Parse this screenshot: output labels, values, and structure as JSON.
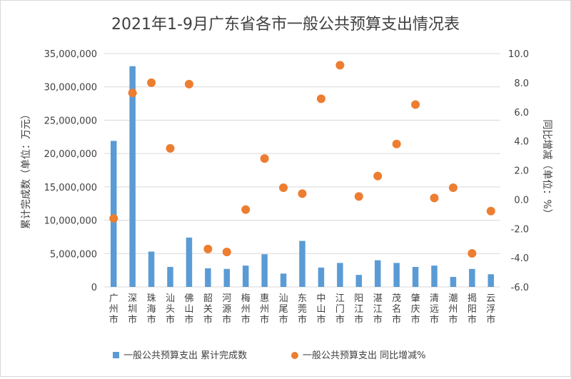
{
  "chart_data": {
    "type": "bar+scatter",
    "title": "2021年1-9月广东省各市一般公共预算支出情况表",
    "ylabel_left": "累计完成数（单位：万元）",
    "ylabel_right": "同比增减（单位：%）",
    "ylim_left": [
      0,
      35000000
    ],
    "ylim_right": [
      -6.0,
      10.0
    ],
    "yticks_left": [
      "0",
      "5,000,000",
      "10,000,000",
      "15,000,000",
      "20,000,000",
      "25,000,000",
      "30,000,000",
      "35,000,000"
    ],
    "yticks_right": [
      "-6.0",
      "-4.0",
      "-2.0",
      "0.0",
      "2.0",
      "4.0",
      "6.0",
      "8.0",
      "10.0"
    ],
    "categories": [
      "广州市",
      "深圳市",
      "珠海市",
      "汕头市",
      "佛山市",
      "韶关市",
      "河源市",
      "梅州市",
      "惠州市",
      "汕尾市",
      "东莞市",
      "中山市",
      "江门市",
      "阳江市",
      "湛江市",
      "茂名市",
      "肇庆市",
      "清远市",
      "潮州市",
      "揭阳市",
      "云浮市"
    ],
    "series": [
      {
        "name": "一般公共预算支出 累计完成数",
        "type": "bar",
        "axis": "left",
        "color": "#5b9bd5",
        "values": [
          21900000,
          33100000,
          5300000,
          3000000,
          7400000,
          2800000,
          2700000,
          3200000,
          4900000,
          2000000,
          6900000,
          2900000,
          3600000,
          1800000,
          4000000,
          3600000,
          3000000,
          3200000,
          1500000,
          2700000,
          1900000
        ]
      },
      {
        "name": "一般公共预算支出 同比增减%",
        "type": "scatter",
        "axis": "right",
        "color": "#ed7d31",
        "values": [
          -1.3,
          7.3,
          8.0,
          3.5,
          7.9,
          -3.4,
          -3.6,
          -0.7,
          2.8,
          0.8,
          0.4,
          6.9,
          9.2,
          0.2,
          1.6,
          3.8,
          6.5,
          0.1,
          0.8,
          -3.7,
          -0.8
        ]
      }
    ],
    "legend_position": "bottom",
    "grid": true
  }
}
